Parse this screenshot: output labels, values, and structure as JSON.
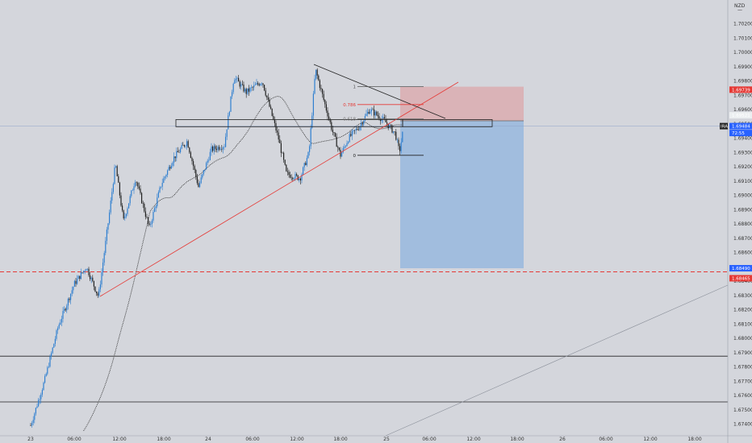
{
  "chart_data": {
    "type": "candlestick",
    "currency": "NZD",
    "price_range": [
      1.6734,
      1.7028
    ],
    "y_tick_labels": [
      "1.70200",
      "1.70100",
      "1.70000",
      "1.69900",
      "1.69800",
      "1.69700",
      "1.69600",
      "1.69500",
      "1.69400",
      "1.69300",
      "1.69200",
      "1.69100",
      "1.69000",
      "1.68900",
      "1.68800",
      "1.68700",
      "1.68600",
      "1.68500",
      "1.68400",
      "1.68300",
      "1.68200",
      "1.68100",
      "1.68000",
      "1.67900",
      "1.67800",
      "1.67700",
      "1.67600",
      "1.67500",
      "1.67400"
    ],
    "x_tick_labels": [
      "23",
      "06:00",
      "12:00",
      "18:00",
      "24",
      "06:00",
      "12:00",
      "18:00",
      "25",
      "06:00",
      "12:00",
      "18:00",
      "26",
      "06:00",
      "12:00",
      "18:00"
    ],
    "price_tags": [
      {
        "label": "1.69739",
        "color": "#e53935"
      },
      {
        "label": "1.69521",
        "color": "#eceff1"
      },
      {
        "label": "1.69484",
        "color": "#2962ff"
      },
      {
        "label": "72:55",
        "color": "#2962ff"
      },
      {
        "label": "1.68490",
        "color": "#2962ff"
      },
      {
        "label": "1.68465",
        "color": "#e53935"
      }
    ],
    "symbol_tag": "IRA",
    "fib_levels": [
      {
        "label": "1",
        "price": 1.6976
      },
      {
        "label": "0.786",
        "price": 1.69635
      },
      {
        "label": "0.618",
        "price": 1.69535
      },
      {
        "label": "0",
        "price": 1.6928
      }
    ],
    "position": {
      "type": "short",
      "entry": 1.69521,
      "stop": 1.6976,
      "target": 1.6849
    },
    "key_levels": [
      1.68465,
      1.67875,
      1.67555
    ],
    "trendlines": [
      {
        "name": "rising-support"
      },
      {
        "name": "falling-resistance"
      },
      {
        "name": "long-diagonal"
      }
    ],
    "zone": {
      "top": 1.6953,
      "bottom": 1.6948
    },
    "grid": false
  }
}
